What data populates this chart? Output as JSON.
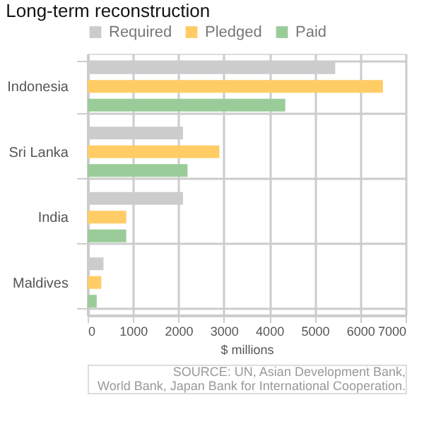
{
  "chart_data": {
    "type": "bar",
    "orientation": "horizontal",
    "title": "Long-term reconstruction",
    "xlabel": "$ millions",
    "categories": [
      "Indonesia",
      "Sri Lanka",
      "India",
      "Maldives"
    ],
    "series": [
      {
        "name": "Required",
        "color": "#cccccc",
        "values": [
          5450,
          2100,
          2100,
          350
        ]
      },
      {
        "name": "Pledged",
        "color": "#ffcc66",
        "values": [
          6500,
          2900,
          850,
          300
        ]
      },
      {
        "name": "Paid",
        "color": "#99cc99",
        "values": [
          4350,
          2200,
          850,
          200
        ]
      }
    ],
    "xlim": [
      0,
      7000
    ],
    "xticks": [
      0,
      1000,
      2000,
      3000,
      4000,
      5000,
      6000,
      7000
    ],
    "grid": true,
    "legend": "top",
    "annotations": [
      "SOURCE: UN, Asian Development Bank,",
      "World Bank, Japan Bank for International Cooperation."
    ]
  }
}
